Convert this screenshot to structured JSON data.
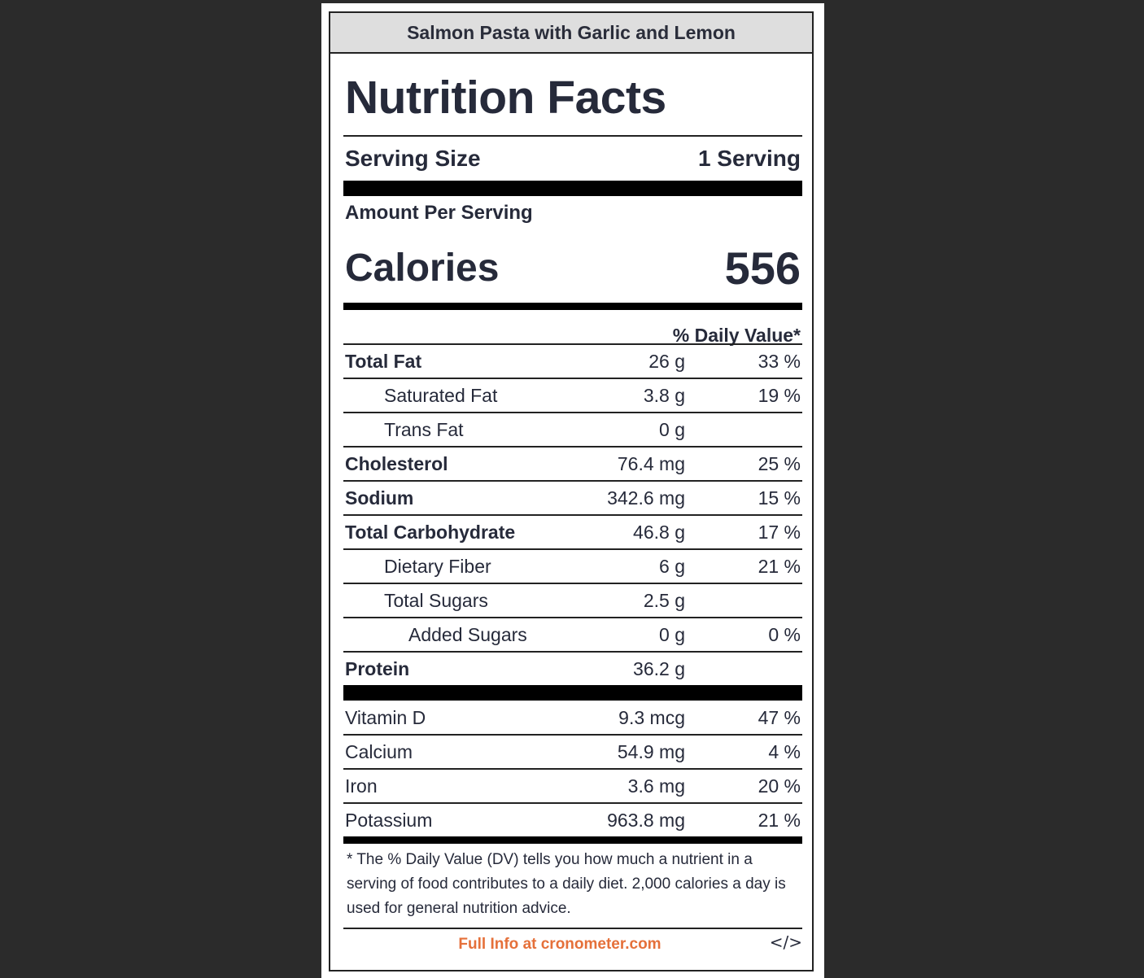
{
  "recipe_title": "Salmon Pasta with Garlic and Lemon",
  "title": "Nutrition Facts",
  "serving": {
    "label": "Serving Size",
    "value": "1 Serving"
  },
  "amount_per_serving": "Amount Per Serving",
  "calories": {
    "label": "Calories",
    "value": "556"
  },
  "daily_value_header": "% Daily Value*",
  "nutrients": [
    {
      "name": "Total Fat",
      "amount": "26 g",
      "dv": "33 %"
    },
    {
      "name": "Saturated Fat",
      "amount": "3.8 g",
      "dv": "19 %"
    },
    {
      "name": "Trans Fat",
      "amount": "0 g",
      "dv": ""
    },
    {
      "name": "Cholesterol",
      "amount": "76.4 mg",
      "dv": "25 %"
    },
    {
      "name": "Sodium",
      "amount": "342.6 mg",
      "dv": "15 %"
    },
    {
      "name": "Total Carbohydrate",
      "amount": "46.8 g",
      "dv": "17 %"
    },
    {
      "name": "Dietary Fiber",
      "amount": "6 g",
      "dv": "21 %"
    },
    {
      "name": "Total Sugars",
      "amount": "2.5 g",
      "dv": ""
    },
    {
      "name": "Added Sugars",
      "amount": "0 g",
      "dv": "0 %"
    },
    {
      "name": "Protein",
      "amount": "36.2 g",
      "dv": ""
    }
  ],
  "vitamins": [
    {
      "name": "Vitamin D",
      "amount": "9.3 mcg",
      "dv": "47 %"
    },
    {
      "name": "Calcium",
      "amount": "54.9 mg",
      "dv": "4 %"
    },
    {
      "name": "Iron",
      "amount": "3.6 mg",
      "dv": "20 %"
    },
    {
      "name": "Potassium",
      "amount": "963.8 mg",
      "dv": "21 %"
    }
  ],
  "footnote": "* The % Daily Value (DV) tells you how much a nutrient in a serving of food contributes to a daily diet. 2,000 calories a day is used for general nutrition advice.",
  "full_info_link": "Full Info at cronometer.com",
  "embed_code_label": "</>",
  "colors": {
    "background": "#2b2b2b",
    "header_bg": "#dedede",
    "text": "#262a3a",
    "link": "#e5703a"
  }
}
